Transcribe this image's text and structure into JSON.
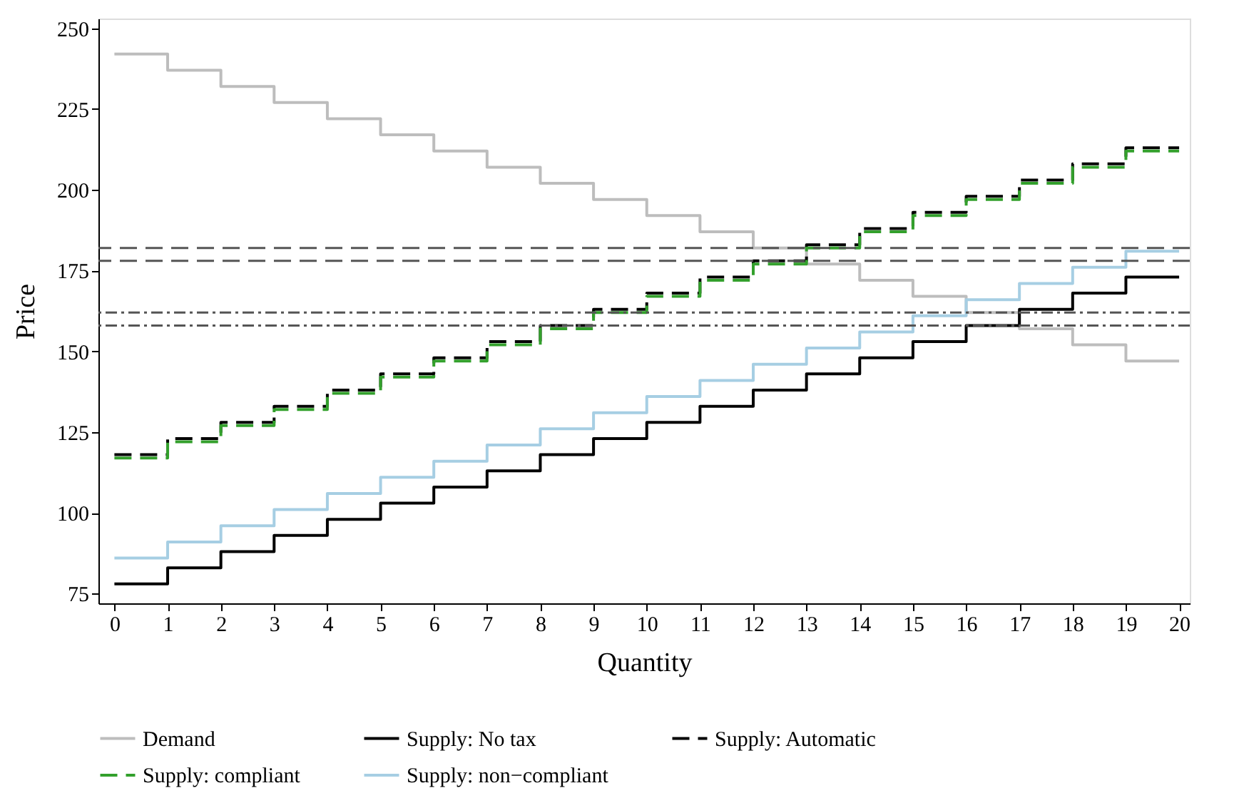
{
  "chart_data": {
    "type": "step",
    "xlabel": "Quantity",
    "ylabel": "Price",
    "x": [
      0,
      1,
      2,
      3,
      4,
      5,
      6,
      7,
      8,
      9,
      10,
      11,
      12,
      13,
      14,
      15,
      16,
      17,
      18,
      19,
      20
    ],
    "xlim": [
      -0.3,
      20.2
    ],
    "ylim": [
      72,
      253
    ],
    "xticks": [
      0,
      1,
      2,
      3,
      4,
      5,
      6,
      7,
      8,
      9,
      10,
      11,
      12,
      13,
      14,
      15,
      16,
      17,
      18,
      19,
      20
    ],
    "yticks": [
      75,
      100,
      125,
      150,
      175,
      200,
      225,
      250
    ],
    "grid": false,
    "legend": "bottom",
    "series": [
      {
        "name": "Demand",
        "color": "#bdbdbd",
        "line_style": "solid",
        "values": [
          242,
          237,
          232,
          227,
          222,
          217,
          212,
          207,
          202,
          197,
          192,
          187,
          182,
          177,
          172,
          167,
          162,
          157,
          152,
          147,
          147
        ]
      },
      {
        "name": "Supply: No tax",
        "color": "#000000",
        "line_style": "solid",
        "values": [
          78,
          83,
          88,
          93,
          98,
          103,
          108,
          113,
          118,
          123,
          128,
          133,
          138,
          143,
          148,
          153,
          158,
          163,
          168,
          173,
          173
        ]
      },
      {
        "name": "Supply: Automatic",
        "color": "#000000",
        "line_style": "dashed",
        "values": [
          118,
          123,
          128,
          133,
          138,
          143,
          148,
          153,
          158,
          163,
          168,
          173,
          178,
          183,
          188,
          193,
          198,
          203,
          208,
          213,
          213
        ]
      },
      {
        "name": "Supply: compliant",
        "color": "#33a02c",
        "line_style": "dashed",
        "values": [
          117,
          122,
          127,
          132,
          137,
          142,
          147,
          152,
          157,
          162,
          167,
          172,
          177,
          182,
          187,
          192,
          197,
          202,
          207,
          212,
          212
        ]
      },
      {
        "name": "Supply: non−compliant",
        "color": "#a6cee3",
        "line_style": "solid",
        "values": [
          86,
          91,
          96,
          101,
          106,
          111,
          116,
          121,
          126,
          131,
          136,
          141,
          146,
          151,
          156,
          161,
          166,
          171,
          176,
          181,
          181
        ]
      }
    ],
    "ref_lines": [
      {
        "axis": "y",
        "value": 182,
        "color": "#555555",
        "line_style": "dashed"
      },
      {
        "axis": "y",
        "value": 178,
        "color": "#555555",
        "line_style": "dashed"
      },
      {
        "axis": "y",
        "value": 162,
        "color": "#555555",
        "line_style": "dashdot"
      },
      {
        "axis": "y",
        "value": 158,
        "color": "#555555",
        "line_style": "dashdot"
      }
    ]
  }
}
